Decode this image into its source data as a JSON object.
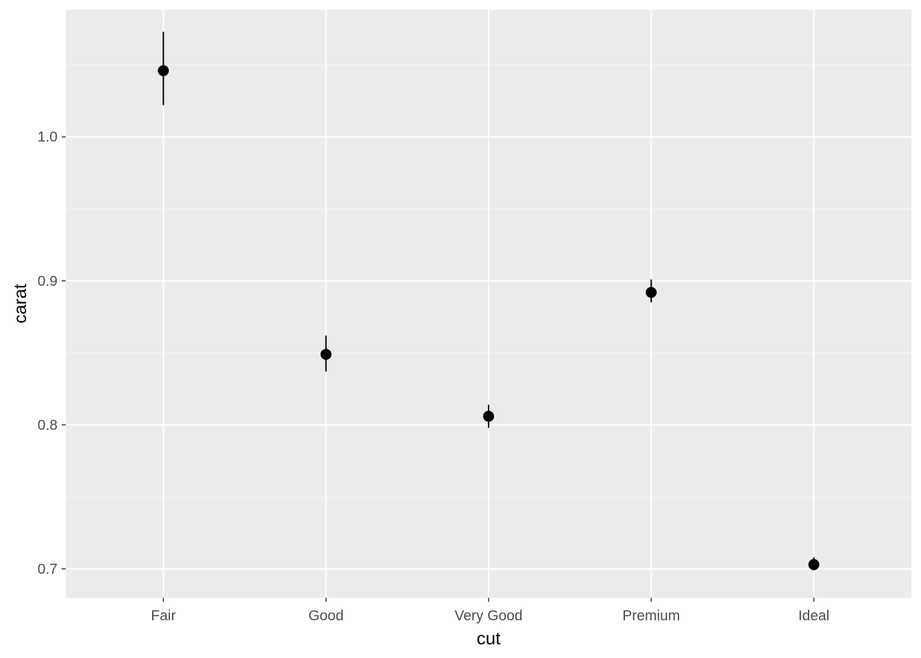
{
  "chart_data": {
    "type": "scatter",
    "subtype": "pointrange",
    "xlabel": "cut",
    "ylabel": "carat",
    "categories": [
      "Fair",
      "Good",
      "Very Good",
      "Premium",
      "Ideal"
    ],
    "series": [
      {
        "values": [
          1.046,
          0.849,
          0.806,
          0.892,
          0.703
        ],
        "lower": [
          1.022,
          0.837,
          0.798,
          0.885,
          0.699
        ],
        "upper": [
          1.073,
          0.862,
          0.814,
          0.901,
          0.708
        ]
      }
    ],
    "ylim": [
      0.68,
      1.0884
    ],
    "yticks": [
      0.7,
      0.8,
      0.9,
      1.0
    ],
    "ytick_labels": [
      "0.7",
      "0.8",
      "0.9",
      "1.0"
    ],
    "grid": true,
    "legend": "none",
    "colors": {
      "panel_background": "#EBEBEB",
      "grid_major": "#FFFFFF",
      "grid_minor": "#F5F5F5",
      "point": "#000000"
    }
  }
}
